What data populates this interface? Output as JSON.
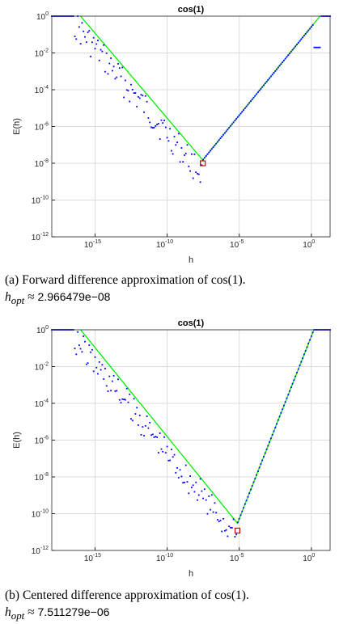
{
  "chart_data": [
    {
      "type": "scatter",
      "title": "cos(1)",
      "xlabel": "h",
      "ylabel": "E(h)",
      "xscale": "log",
      "yscale": "log",
      "xlim": [
        1e-18,
        20.0
      ],
      "ylim": [
        1e-12,
        1.0
      ],
      "x_ticks": [
        -15,
        -10,
        -5,
        0
      ],
      "y_ticks": [
        -12,
        -10,
        -8,
        -6,
        -4,
        -2,
        0
      ],
      "grid": true,
      "colors": {
        "points": "#0000ff",
        "bound": "#00ee00",
        "marker": "#cc0000"
      },
      "bound_curve": {
        "x": [
          1e-16,
          2.966479e-08,
          4
        ],
        "y": [
          1,
          1.5e-08,
          1
        ]
      },
      "error_points": {
        "x_range": [
          1e-18,
          10.0
        ],
        "bump": {
          "x": 3.0,
          "y": 0.01
        },
        "plateau_x_end": 5e-17
      },
      "h_opt": {
        "x": 2.966479e-08,
        "y": 1e-08
      },
      "caption": {
        "text": "(a) Forward difference approximation of cos(1).",
        "hopt_label": "h",
        "hopt_sub": "opt",
        "approx": "≈",
        "hopt_value": "2.966479e−08"
      }
    },
    {
      "type": "scatter",
      "title": "cos(1)",
      "xlabel": "h",
      "ylabel": "E(h)",
      "xscale": "log",
      "yscale": "log",
      "xlim": [
        1e-18,
        20.0
      ],
      "ylim": [
        1e-12,
        1.0
      ],
      "x_ticks": [
        -15,
        -10,
        -5,
        0
      ],
      "y_ticks": [
        -12,
        -10,
        -8,
        -6,
        -4,
        -2,
        0
      ],
      "grid": true,
      "colors": {
        "points": "#0000ff",
        "bound": "#00ee00",
        "marker": "#cc0000"
      },
      "bound_curve": {
        "x": [
          1e-16,
          7.511279e-06,
          1.5
        ],
        "y": [
          1,
          3e-11,
          1
        ]
      },
      "error_points": {
        "x_range": [
          1e-18,
          10.0
        ],
        "plateau_x_end": 5e-17
      },
      "h_opt": {
        "x": 7.511279e-06,
        "y": 1.2e-11
      },
      "caption": {
        "text": "(b) Centered difference approximation of cos(1).",
        "hopt_label": "h",
        "hopt_sub": "opt",
        "approx": "≈",
        "hopt_value": "7.511279e−06"
      }
    }
  ]
}
